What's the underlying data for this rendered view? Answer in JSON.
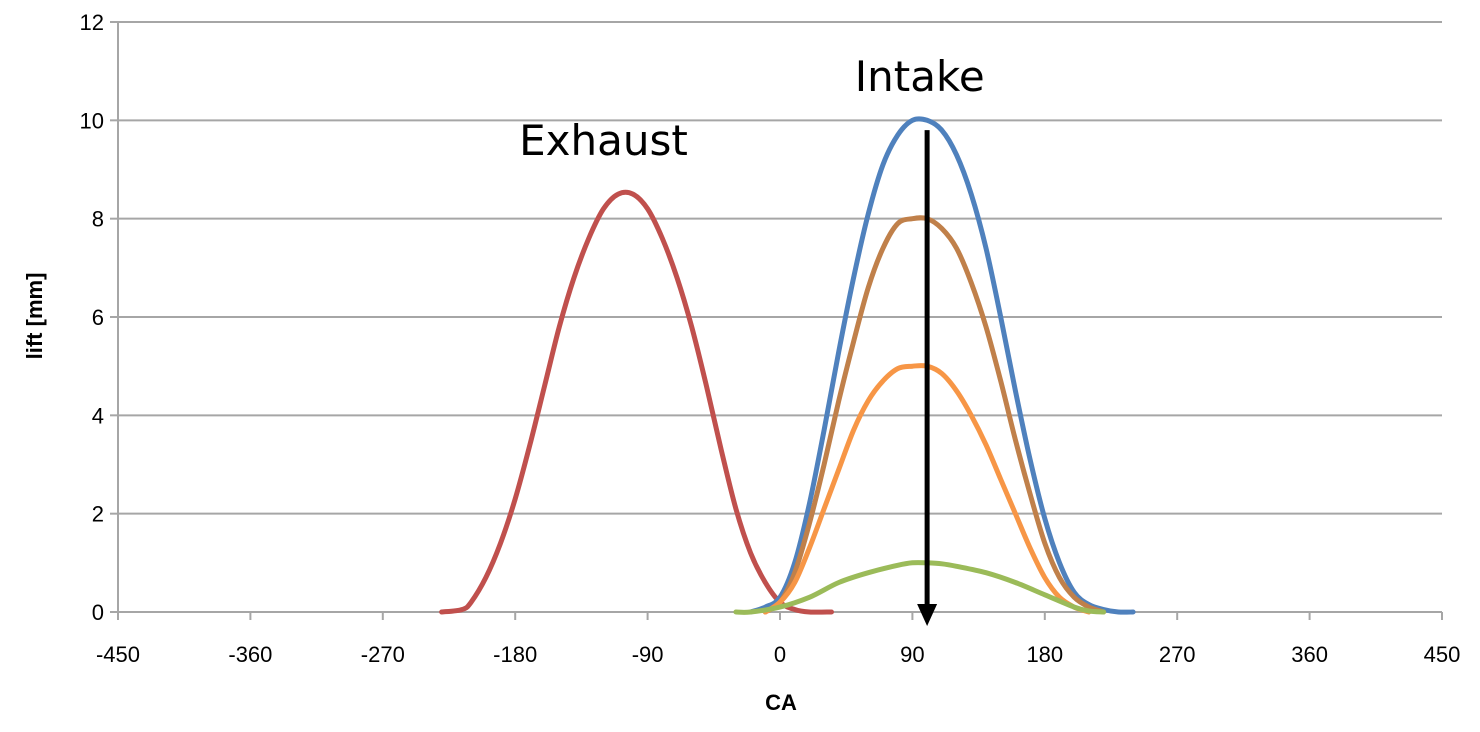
{
  "chart_data": {
    "type": "line",
    "title": "",
    "xlabel": "CA",
    "ylabel": "lift [mm]",
    "xlim": [
      -450,
      450
    ],
    "ylim": [
      0,
      12
    ],
    "xticks": [
      -450,
      -360,
      -270,
      -180,
      -90,
      0,
      90,
      180,
      270,
      360,
      450
    ],
    "yticks": [
      0,
      2,
      4,
      6,
      8,
      10,
      12
    ],
    "grid": "horizontal",
    "legend": "none",
    "annotations": [
      {
        "text": "Exhaust"
      },
      {
        "text": "Intake"
      }
    ],
    "arrow": {
      "from": [
        100,
        9.8
      ],
      "to": [
        100,
        0
      ]
    },
    "series": [
      {
        "color": "#c0504d",
        "x": [
          -230,
          -216,
          -210,
          -200,
          -190,
          -180,
          -170,
          -160,
          -150,
          -140,
          -130,
          -120,
          -110,
          -100,
          -90,
          -80,
          -70,
          -60,
          -50,
          -40,
          -30,
          -20,
          -10,
          0,
          10,
          20,
          35
        ],
        "y": [
          0,
          0.05,
          0.2,
          0.7,
          1.4,
          2.3,
          3.4,
          4.6,
          5.8,
          6.8,
          7.6,
          8.2,
          8.5,
          8.5,
          8.2,
          7.6,
          6.8,
          5.8,
          4.6,
          3.3,
          2.1,
          1.2,
          0.6,
          0.2,
          0.05,
          0,
          0
        ]
      },
      {
        "color": "#4f81bd",
        "x": [
          -20,
          -10,
          0,
          10,
          20,
          30,
          40,
          50,
          60,
          70,
          80,
          90,
          100,
          110,
          120,
          130,
          140,
          150,
          160,
          170,
          180,
          190,
          200,
          210,
          220,
          230,
          240
        ],
        "y": [
          0,
          0.1,
          0.3,
          1.0,
          2.2,
          3.7,
          5.3,
          6.8,
          8.1,
          9.1,
          9.7,
          10.0,
          10.0,
          9.8,
          9.3,
          8.5,
          7.4,
          6.0,
          4.5,
          3.1,
          1.9,
          1.0,
          0.4,
          0.15,
          0.05,
          0,
          0
        ]
      },
      {
        "color": "#c0804a",
        "x": [
          -10,
          0,
          10,
          20,
          30,
          40,
          50,
          60,
          70,
          80,
          90,
          100,
          110,
          120,
          130,
          140,
          150,
          160,
          170,
          180,
          190,
          200,
          210,
          220
        ],
        "y": [
          0,
          0.2,
          0.8,
          1.8,
          3.0,
          4.3,
          5.5,
          6.6,
          7.4,
          7.9,
          8.0,
          8.0,
          7.8,
          7.4,
          6.7,
          5.8,
          4.7,
          3.5,
          2.4,
          1.4,
          0.7,
          0.3,
          0.1,
          0
        ]
      },
      {
        "color": "#f79646",
        "x": [
          -10,
          0,
          10,
          20,
          30,
          40,
          50,
          60,
          70,
          80,
          90,
          100,
          110,
          120,
          130,
          140,
          150,
          160,
          170,
          180,
          190,
          200,
          210
        ],
        "y": [
          0,
          0.2,
          0.6,
          1.3,
          2.1,
          2.9,
          3.7,
          4.3,
          4.7,
          4.95,
          5.0,
          5.0,
          4.85,
          4.5,
          4.0,
          3.4,
          2.7,
          2.0,
          1.3,
          0.7,
          0.3,
          0.1,
          0
        ]
      },
      {
        "color": "#9bbb59",
        "x": [
          -30,
          -20,
          0,
          20,
          40,
          60,
          80,
          90,
          100,
          110,
          120,
          140,
          160,
          180,
          200,
          210,
          220
        ],
        "y": [
          0,
          0,
          0.1,
          0.3,
          0.6,
          0.8,
          0.95,
          1.0,
          1.0,
          0.98,
          0.93,
          0.8,
          0.6,
          0.35,
          0.1,
          0.02,
          0
        ]
      }
    ]
  }
}
